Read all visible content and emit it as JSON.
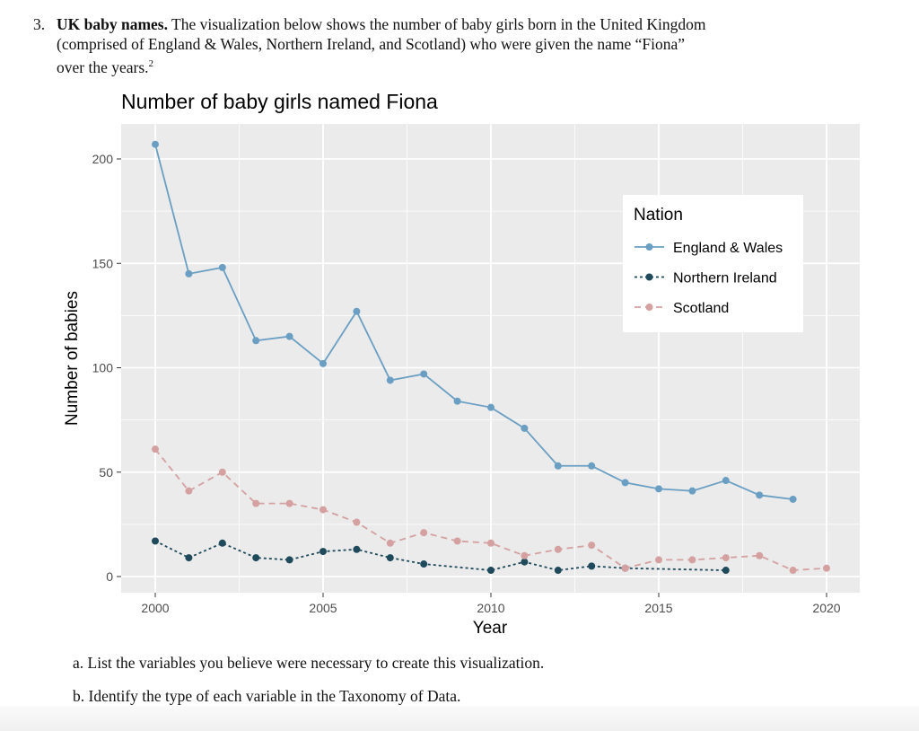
{
  "question": {
    "number": "3.",
    "title": "UK baby names.",
    "line1": "The visualization below shows the number of baby girls born in the United Kingdom",
    "line2": "(comprised of England & Wales, Northern Ireland, and Scotland) who were given the name “Fiona”",
    "line3": "over the years.",
    "footnote": "2",
    "part_a": "a. List the variables you believe were necessary to create this visualization.",
    "part_b": "b. Identify the type of each variable in the Taxonomy of Data."
  },
  "chart_data": {
    "type": "line",
    "title": "Number of baby girls named Fiona",
    "xlabel": "Year",
    "ylabel": "Number of babies",
    "xlim": [
      1999.3,
      2021
    ],
    "ylim": [
      -8,
      215
    ],
    "xticks": [
      2000,
      2005,
      2010,
      2015,
      2020
    ],
    "yticks": [
      0,
      50,
      100,
      150,
      200
    ],
    "grid": true,
    "background": "#ebebeb",
    "legend": {
      "title": "Nation",
      "position": "top-right"
    },
    "series": [
      {
        "name": "England & Wales",
        "color": "#6a9fc3",
        "dash": "solid",
        "x": [
          2000,
          2001,
          2002,
          2003,
          2004,
          2005,
          2006,
          2007,
          2008,
          2009,
          2010,
          2011,
          2012,
          2013,
          2014,
          2015,
          2016,
          2017,
          2018,
          2019
        ],
        "y": [
          207,
          145,
          148,
          113,
          115,
          102,
          127,
          94,
          97,
          84,
          81,
          71,
          53,
          53,
          45,
          42,
          41,
          46,
          39,
          37
        ]
      },
      {
        "name": "Northern Ireland",
        "color": "#1f4a5c",
        "dash": "dotted",
        "x": [
          2000,
          2001,
          2002,
          2003,
          2004,
          2005,
          2006,
          2007,
          2008,
          2010,
          2011,
          2012,
          2013,
          2014,
          2017
        ],
        "y": [
          17,
          9,
          16,
          9,
          8,
          12,
          13,
          9,
          6,
          3,
          7,
          3,
          5,
          4,
          3
        ]
      },
      {
        "name": "Scotland",
        "color": "#d4a0a0",
        "dash": "dashed",
        "x": [
          2000,
          2001,
          2002,
          2003,
          2004,
          2005,
          2006,
          2007,
          2008,
          2009,
          2010,
          2011,
          2012,
          2013,
          2014,
          2015,
          2016,
          2017,
          2018,
          2019,
          2020
        ],
        "y": [
          61,
          41,
          50,
          35,
          35,
          32,
          26,
          16,
          21,
          17,
          16,
          10,
          13,
          15,
          4,
          8,
          8,
          9,
          10,
          3,
          4
        ]
      }
    ]
  }
}
